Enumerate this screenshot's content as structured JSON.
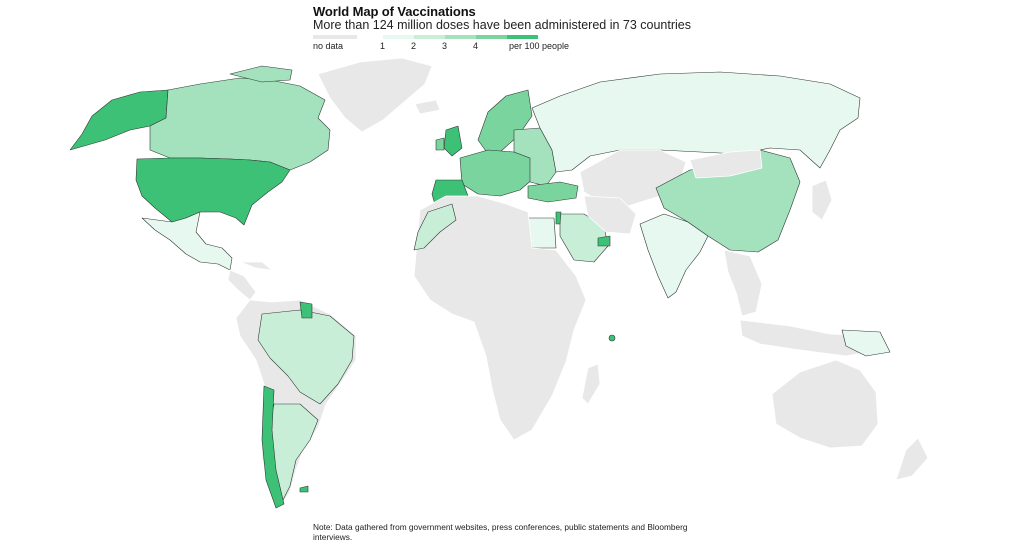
{
  "title": "World Map of Vaccinations",
  "subtitle": "More than 124 million doses have been administered in 73 countries",
  "legend": {
    "no_data_label": "no data",
    "unit_label": "per 100 people",
    "steps": [
      "1",
      "2",
      "3",
      "4"
    ],
    "colors": {
      "no_data": "#e8e8e8",
      "b0": "#e6f8ef",
      "b1": "#c9eed8",
      "b2": "#a3e2bd",
      "b3": "#79d59d",
      "b4": "#3dc176"
    }
  },
  "note": "Note: Data gathered from government websites, press conferences, public statements and Bloomberg interviews."
}
